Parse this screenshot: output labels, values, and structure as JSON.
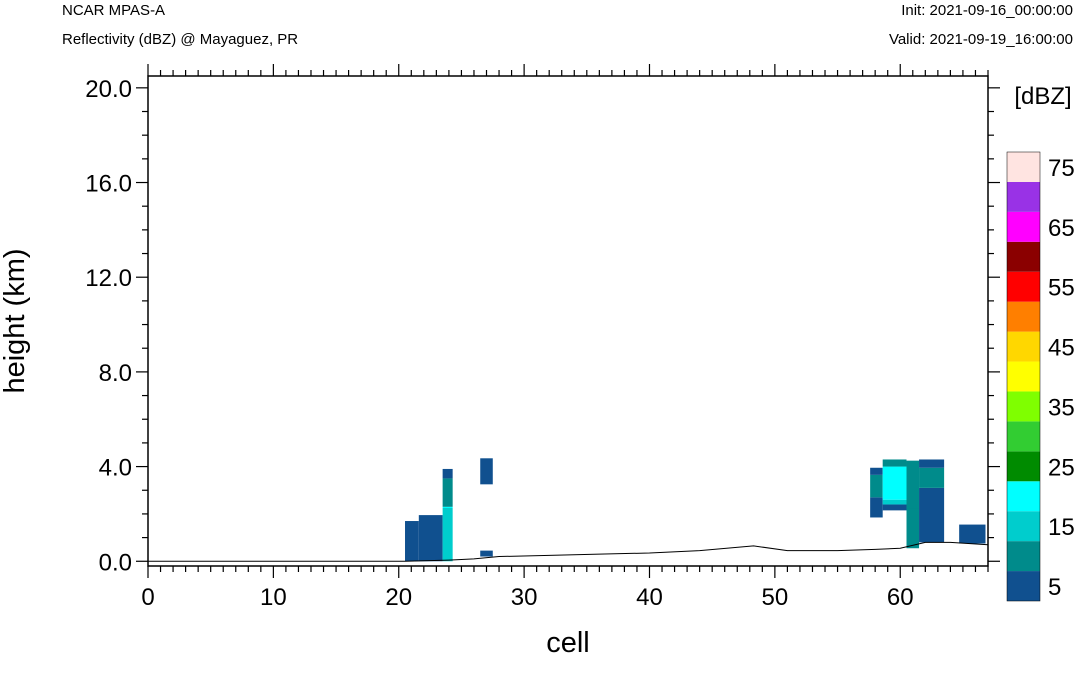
{
  "header": {
    "left_line1": "NCAR MPAS-A",
    "left_line2": "Reflectivity (dBZ) @ Mayaguez, PR",
    "right_line1": "Init: 2021-09-16_00:00:00",
    "right_line2": "Valid: 2021-09-19_16:00:00"
  },
  "chart_data": {
    "type": "heatmap",
    "xlabel": "cell",
    "ylabel": "height (km)",
    "xlim": [
      0,
      67
    ],
    "ylim": [
      -0.2,
      20.5
    ],
    "x_ticks": [
      0,
      10,
      20,
      30,
      40,
      50,
      60
    ],
    "x_tick_labels": [
      "0",
      "10",
      "20",
      "30",
      "40",
      "50",
      "60"
    ],
    "y_ticks": [
      0,
      4,
      8,
      12,
      16,
      20
    ],
    "y_tick_labels": [
      "0.0",
      "4.0",
      "8.0",
      "12.0",
      "16.0",
      "20.0"
    ],
    "colorbar": {
      "title": "[dBZ]",
      "levels": [
        5,
        10,
        15,
        20,
        25,
        30,
        35,
        40,
        45,
        50,
        55,
        60,
        65,
        70,
        75
      ],
      "labels": [
        "5",
        "15",
        "25",
        "35",
        "45",
        "55",
        "65",
        "75"
      ],
      "colors": [
        "#10508f",
        "#008b8b",
        "#00cdcd",
        "#00ffff",
        "#008b00",
        "#32cd32",
        "#7fff00",
        "#ffff00",
        "#ffd700",
        "#ff7f00",
        "#ff0000",
        "#8b0000",
        "#ff00ff",
        "#9932e6",
        "#ffe4e1"
      ]
    },
    "terrain": [
      [
        0,
        0.0
      ],
      [
        20.5,
        0.0
      ],
      [
        24,
        0.05
      ],
      [
        26,
        0.1
      ],
      [
        28,
        0.2
      ],
      [
        32,
        0.25
      ],
      [
        36,
        0.3
      ],
      [
        40,
        0.35
      ],
      [
        44,
        0.45
      ],
      [
        48.3,
        0.65
      ],
      [
        51,
        0.45
      ],
      [
        55,
        0.45
      ],
      [
        58,
        0.5
      ],
      [
        60,
        0.55
      ],
      [
        62,
        0.8
      ],
      [
        64,
        0.8
      ],
      [
        67,
        0.7
      ]
    ],
    "cells": [
      {
        "x0": 20.5,
        "x1": 21.6,
        "y0": 0.0,
        "y1": 1.7,
        "dbz": 5
      },
      {
        "x0": 21.6,
        "x1": 23.5,
        "y0": 0.0,
        "y1": 1.95,
        "dbz": 5
      },
      {
        "x0": 23.5,
        "x1": 24.3,
        "y0": 0.0,
        "y1": 2.25,
        "dbz": 15
      },
      {
        "x0": 23.5,
        "x1": 24.3,
        "y0": 2.25,
        "y1": 2.3,
        "dbz": 20
      },
      {
        "x0": 23.5,
        "x1": 24.3,
        "y0": 2.3,
        "y1": 3.5,
        "dbz": 10
      },
      {
        "x0": 23.5,
        "x1": 24.3,
        "y0": 3.5,
        "y1": 3.9,
        "dbz": 5
      },
      {
        "x0": 26.5,
        "x1": 27.5,
        "y0": 0.2,
        "y1": 0.45,
        "dbz": 5
      },
      {
        "x0": 26.5,
        "x1": 27.5,
        "y0": 3.25,
        "y1": 4.35,
        "dbz": 5
      },
      {
        "x0": 57.6,
        "x1": 58.6,
        "y0": 1.85,
        "y1": 2.7,
        "dbz": 5
      },
      {
        "x0": 57.6,
        "x1": 58.6,
        "y0": 2.7,
        "y1": 3.65,
        "dbz": 10
      },
      {
        "x0": 57.6,
        "x1": 58.6,
        "y0": 3.65,
        "y1": 3.95,
        "dbz": 5
      },
      {
        "x0": 58.6,
        "x1": 60.5,
        "y0": 2.15,
        "y1": 2.4,
        "dbz": 5
      },
      {
        "x0": 58.6,
        "x1": 60.5,
        "y0": 2.4,
        "y1": 2.6,
        "dbz": 15
      },
      {
        "x0": 58.6,
        "x1": 60.5,
        "y0": 2.6,
        "y1": 4.0,
        "dbz": 20
      },
      {
        "x0": 58.6,
        "x1": 60.5,
        "y0": 4.0,
        "y1": 4.3,
        "dbz": 10
      },
      {
        "x0": 60.5,
        "x1": 61.5,
        "y0": 0.55,
        "y1": 2.25,
        "dbz": 10
      },
      {
        "x0": 60.5,
        "x1": 61.5,
        "y0": 2.25,
        "y1": 4.25,
        "dbz": 10
      },
      {
        "x0": 61.5,
        "x1": 63.5,
        "y0": 0.8,
        "y1": 3.1,
        "dbz": 5
      },
      {
        "x0": 61.5,
        "x1": 63.5,
        "y0": 3.1,
        "y1": 3.95,
        "dbz": 10
      },
      {
        "x0": 61.5,
        "x1": 63.5,
        "y0": 3.95,
        "y1": 4.3,
        "dbz": 5
      },
      {
        "x0": 64.7,
        "x1": 66.8,
        "y0": 0.75,
        "y1": 1.55,
        "dbz": 5
      }
    ]
  }
}
